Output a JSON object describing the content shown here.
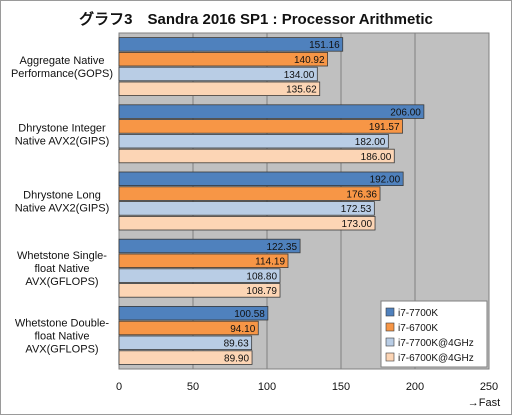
{
  "chart_data": {
    "type": "bar",
    "orientation": "horizontal",
    "title": "グラフ3　Sandra 2016 SP1 : Processor Arithmetic",
    "categories": [
      [
        "Aggregate Native",
        "Performance(GOPS)"
      ],
      [
        "Dhrystone Integer",
        "Native AVX2(GIPS)"
      ],
      [
        "Dhrystone Long",
        "Native AVX2(GIPS)"
      ],
      [
        "Whetstone Single-",
        "float Native",
        "AVX(GFLOPS)"
      ],
      [
        "Whetstone Double-",
        "float Native",
        "AVX(GFLOPS)"
      ]
    ],
    "series": [
      {
        "name": "i7-7700K",
        "color": "#4f81bd",
        "values": [
          151.16,
          206.0,
          192.0,
          122.35,
          100.58
        ]
      },
      {
        "name": "i7-6700K",
        "color": "#f79646",
        "values": [
          140.92,
          191.57,
          176.36,
          114.19,
          94.1
        ]
      },
      {
        "name": "i7-7700K@4GHz",
        "color": "#b9cde5",
        "values": [
          134.0,
          182.0,
          172.53,
          108.8,
          89.63
        ]
      },
      {
        "name": "i7-6700K@4GHz",
        "color": "#fcd5b5",
        "values": [
          135.62,
          186.0,
          173.0,
          108.79,
          89.9
        ]
      }
    ],
    "value_labels": [
      [
        "151.16",
        "206.00",
        "192.00",
        "122.35",
        "100.58"
      ],
      [
        "140.92",
        "191.57",
        "176.36",
        "114.19",
        "94.10"
      ],
      [
        "134.00",
        "182.00",
        "172.53",
        "108.80",
        "89.63"
      ],
      [
        "135.62",
        "186.00",
        "173.00",
        "108.79",
        "89.90"
      ]
    ],
    "xlim": [
      0,
      250
    ],
    "xticks": [
      0,
      50,
      100,
      150,
      200,
      250
    ],
    "x_caption": "→Fast",
    "grid": true,
    "legend_position": "bottom-right",
    "plot_background": "#c0c0c0"
  }
}
